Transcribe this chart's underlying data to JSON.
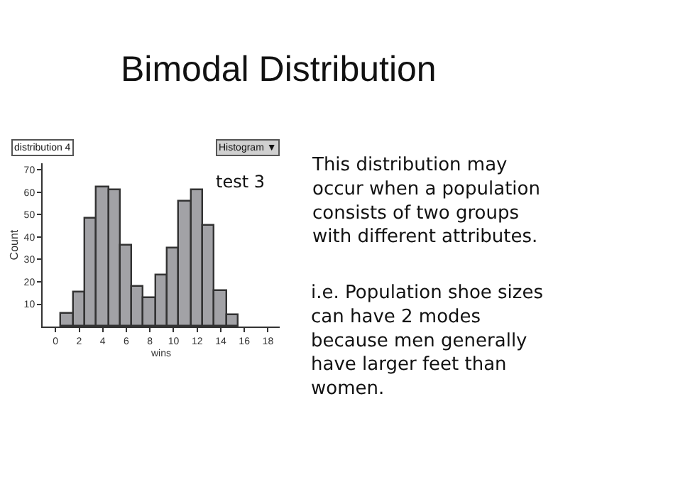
{
  "chart_data": {
    "type": "histogram",
    "title": "Bimodal Distribution",
    "xlabel": "wins",
    "ylabel": "Count",
    "bins": [
      0.5,
      1.5,
      2.5,
      3.5,
      4.5,
      5.5,
      6.5,
      7.5,
      8.5,
      9.5,
      10.5,
      11.5,
      12.5,
      13.5,
      14.5,
      15.5
    ],
    "values": [
      6,
      15,
      48,
      62,
      61,
      36,
      18,
      13,
      23,
      35,
      56,
      61,
      45,
      16,
      5
    ],
    "color": "#a2a2a6",
    "xlim": [
      -1.1,
      19
    ],
    "xticks": [
      0,
      2,
      4,
      6,
      8,
      10,
      12,
      14,
      16,
      18
    ],
    "ylim": [
      0,
      73
    ],
    "yticks": [
      10,
      20,
      30,
      40,
      50,
      60,
      70
    ],
    "annotations": [
      "distribution 4",
      "Histogram ▼",
      "test 3",
      "This distribution may\noccur when a population\nconsists of two groups\nwith different attributes.",
      "i.e. Population shoe sizes\ncan have 2 modes\nbecause men generally\nhave larger feet than\nwomen."
    ]
  }
}
